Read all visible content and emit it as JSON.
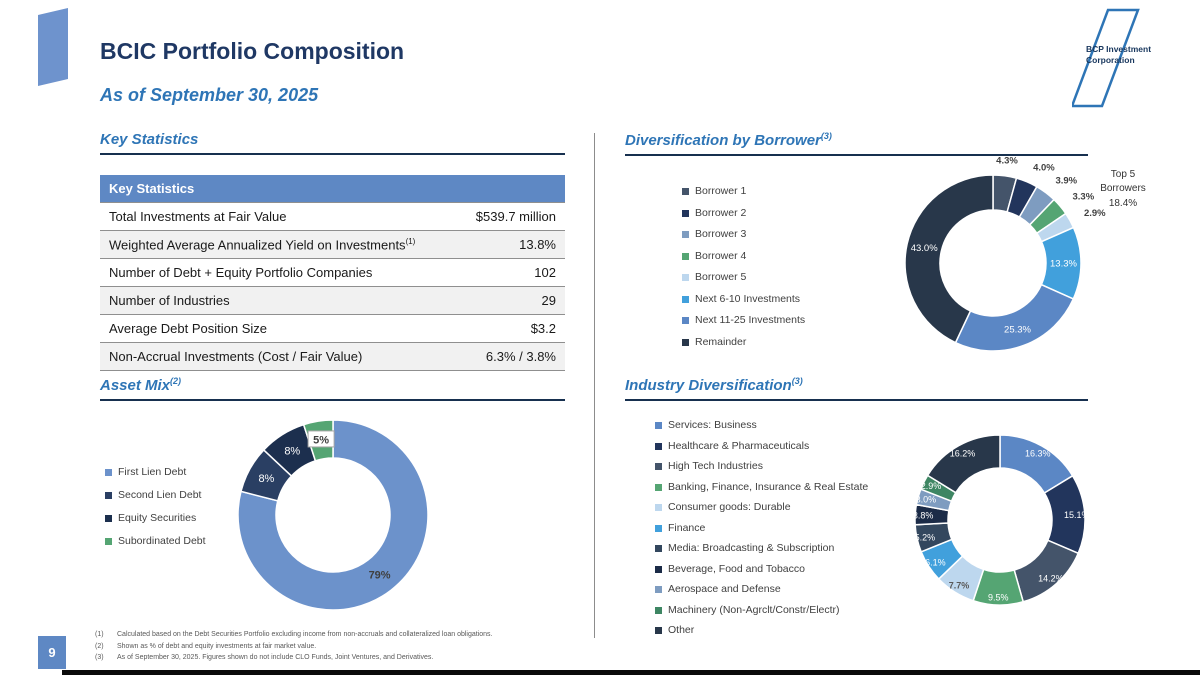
{
  "page": {
    "title": "BCIC Portfolio Composition",
    "subtitle": "As of September 30, 2025",
    "page_number": "9",
    "logo_line1": "BCP Investment",
    "logo_line2": "Corporation"
  },
  "key_statistics": {
    "section_title": "Key Statistics",
    "table_header": "Key Statistics",
    "rows": [
      {
        "label": "Total Investments at Fair Value",
        "ref": "",
        "value": "$539.7 million"
      },
      {
        "label": "Weighted Average Annualized Yield on Investments",
        "ref": "(1)",
        "value": "13.8%"
      },
      {
        "label": "Number of Debt + Equity Portfolio Companies",
        "ref": "",
        "value": "102"
      },
      {
        "label": "Number of Industries",
        "ref": "",
        "value": "29"
      },
      {
        "label": "Average Debt Position Size",
        "ref": "",
        "value": "$3.2"
      },
      {
        "label": "Non-Accrual Investments (Cost / Fair Value)",
        "ref": "",
        "value": "6.3% / 3.8%"
      }
    ]
  },
  "sections": {
    "asset_mix_title": "Asset Mix",
    "asset_mix_ref": "(2)",
    "borrower_title": "Diversification by Borrower",
    "borrower_ref": "(3)",
    "industry_title": "Industry Diversification",
    "industry_ref": "(3)"
  },
  "top5_annotation": {
    "line1": "Top 5",
    "line2": "Borrowers",
    "value": "18.4%"
  },
  "chart_data": [
    {
      "id": "asset_mix",
      "type": "donut",
      "title": "Asset Mix",
      "legend_position": "left",
      "segments": [
        {
          "label": "First Lien Debt",
          "value": 79,
          "display": "79%",
          "color": "#6C92CB",
          "label_pos": "inside",
          "label_color": "#3F3F3F"
        },
        {
          "label": "Second Lien Debt",
          "value": 8,
          "display": "8%",
          "color": "#2A3F63",
          "label_pos": "inside",
          "label_color": "#FFFFFF"
        },
        {
          "label": "Equity Securities",
          "value": 8,
          "display": "8%",
          "color": "#1C2F4E",
          "label_pos": "inside",
          "label_color": "#FFFFFF"
        },
        {
          "label": "Subordinated Debt",
          "value": 5,
          "display": "5%",
          "color": "#55A573",
          "label_pos": "inside",
          "label_color": "#3F3F3F",
          "boxed": true
        }
      ]
    },
    {
      "id": "borrower",
      "type": "donut",
      "title": "Diversification by Borrower",
      "annotation": "Top 5 Borrowers 18.4%",
      "legend_position": "left",
      "segments": [
        {
          "label": "Borrower 1",
          "value": 4.3,
          "display": "4.3%",
          "color": "#44546A",
          "label_pos": "outside",
          "label_color": "#3F3F3F"
        },
        {
          "label": "Borrower 2",
          "value": 4.0,
          "display": "4.0%",
          "color": "#22355C",
          "label_pos": "outside",
          "label_color": "#3F3F3F"
        },
        {
          "label": "Borrower 3",
          "value": 3.9,
          "display": "3.9%",
          "color": "#7E9CC0",
          "label_pos": "outside",
          "label_color": "#3F3F3F"
        },
        {
          "label": "Borrower 4",
          "value": 3.3,
          "display": "3.3%",
          "color": "#55A573",
          "label_pos": "outside",
          "label_color": "#3F3F3F"
        },
        {
          "label": "Borrower 5",
          "value": 2.9,
          "display": "2.9%",
          "color": "#BDD7EE",
          "label_pos": "outside",
          "label_color": "#3F3F3F"
        },
        {
          "label": "Next 6-10 Investments",
          "value": 13.3,
          "display": "13.3%",
          "color": "#41A0DC",
          "label_pos": "inside",
          "label_color": "#FFFFFF"
        },
        {
          "label": "Next 11-25 Investments",
          "value": 25.3,
          "display": "25.3%",
          "color": "#5B87C5",
          "label_pos": "inside",
          "label_color": "#FFFFFF"
        },
        {
          "label": "Remainder",
          "value": 43.0,
          "display": "43.0%",
          "color": "#28374A",
          "label_pos": "inside",
          "label_color": "#FFFFFF"
        }
      ]
    },
    {
      "id": "industry",
      "type": "donut",
      "title": "Industry Diversification",
      "legend_position": "left",
      "segments": [
        {
          "label": "Services: Business",
          "value": 16.3,
          "display": "16.3%",
          "color": "#5B87C5",
          "label_pos": "edge",
          "label_color": "#FFFFFF"
        },
        {
          "label": "Healthcare & Pharmaceuticals",
          "value": 15.1,
          "display": "15.1%",
          "color": "#22355C",
          "label_pos": "edge",
          "label_color": "#FFFFFF"
        },
        {
          "label": "High Tech Industries",
          "value": 14.2,
          "display": "14.2%",
          "color": "#44546A",
          "label_pos": "edge",
          "label_color": "#FFFFFF"
        },
        {
          "label": "Banking, Finance, Insurance & Real Estate",
          "value": 9.5,
          "display": "9.5%",
          "color": "#55A573",
          "label_pos": "edge",
          "label_color": "#FFFFFF"
        },
        {
          "label": "Consumer goods: Durable",
          "value": 7.7,
          "display": "7.7%",
          "color": "#BDD7EE",
          "label_pos": "edge",
          "label_color": "#595959"
        },
        {
          "label": "Finance",
          "value": 6.1,
          "display": "6.1%",
          "color": "#41A0DC",
          "label_pos": "edge",
          "label_color": "#FFFFFF"
        },
        {
          "label": "Media: Broadcasting & Subscription",
          "value": 5.2,
          "display": "5.2%",
          "color": "#33475E",
          "label_pos": "edge",
          "label_color": "#FFFFFF"
        },
        {
          "label": "Beverage, Food and Tobacco",
          "value": 3.8,
          "display": "3.8%",
          "color": "#1B2B47",
          "label_pos": "edge",
          "label_color": "#FFFFFF"
        },
        {
          "label": "Aerospace and Defense",
          "value": 3.0,
          "display": "3.0%",
          "color": "#7E9CC0",
          "label_pos": "edge",
          "label_color": "#FFFFFF"
        },
        {
          "label": "Machinery (Non-Agrclt/Constr/Electr)",
          "value": 2.9,
          "display": "2.9%",
          "color": "#3E8663",
          "label_pos": "edge",
          "label_color": "#FFFFFF"
        },
        {
          "label": "Other",
          "value": 16.2,
          "display": "16.2%",
          "color": "#28374A",
          "label_pos": "edge",
          "label_color": "#FFFFFF"
        }
      ]
    }
  ],
  "footnotes": [
    {
      "ref": "(1)",
      "text": "Calculated based on the Debt Securities Portfolio excluding income from non-accruals and collateralized loan obligations."
    },
    {
      "ref": "(2)",
      "text": "Shown as % of debt and equity investments at fair market value."
    },
    {
      "ref": "(3)",
      "text": "As of September 30, 2025. Figures shown do not include CLO Funds, Joint Ventures, and Derivatives."
    }
  ],
  "colors": {
    "accent_blue": "#5E88C4",
    "title_navy": "#1F3864",
    "section_blue": "#2E75B6",
    "table_header_bg": "#5E88C4",
    "row_alt_bg": "#F1F1F1"
  }
}
